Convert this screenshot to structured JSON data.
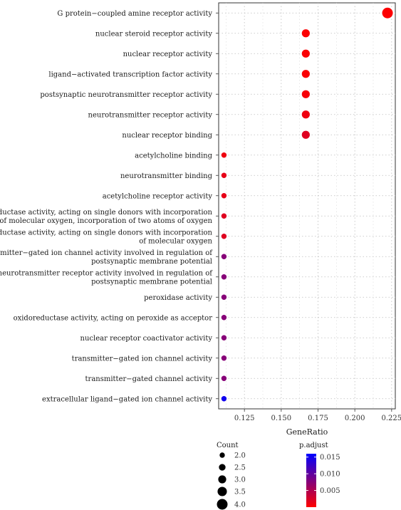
{
  "chart_data": {
    "type": "scatter",
    "xlabel": "GeneRatio",
    "xlim": [
      0.1075,
      0.2275
    ],
    "xticks": [
      0.125,
      0.15,
      0.175,
      0.2,
      0.225
    ],
    "xtick_labels": [
      "0.125",
      "0.150",
      "0.175",
      "0.200",
      "0.225"
    ],
    "grid": true,
    "points": [
      {
        "term": [
          "G protein−coupled amine receptor activity"
        ],
        "gene_ratio": 0.2222,
        "count": 4,
        "p_adjust": 0.0001
      },
      {
        "term": [
          "nuclear steroid receptor activity"
        ],
        "gene_ratio": 0.1667,
        "count": 3,
        "p_adjust": 0.0002
      },
      {
        "term": [
          "nuclear receptor activity"
        ],
        "gene_ratio": 0.1667,
        "count": 3,
        "p_adjust": 0.0003
      },
      {
        "term": [
          "ligand−activated transcription factor activity"
        ],
        "gene_ratio": 0.1667,
        "count": 3,
        "p_adjust": 0.0003
      },
      {
        "term": [
          "postsynaptic neurotransmitter receptor activity"
        ],
        "gene_ratio": 0.1667,
        "count": 3,
        "p_adjust": 0.0005
      },
      {
        "term": [
          "neurotransmitter receptor activity"
        ],
        "gene_ratio": 0.1667,
        "count": 3,
        "p_adjust": 0.001
      },
      {
        "term": [
          "nuclear receptor binding"
        ],
        "gene_ratio": 0.1667,
        "count": 3,
        "p_adjust": 0.002
      },
      {
        "term": [
          "acetylcholine binding"
        ],
        "gene_ratio": 0.1111,
        "count": 2,
        "p_adjust": 0.001
      },
      {
        "term": [
          "neurotransmitter binding"
        ],
        "gene_ratio": 0.1111,
        "count": 2,
        "p_adjust": 0.0015
      },
      {
        "term": [
          "acetylcholine receptor activity"
        ],
        "gene_ratio": 0.1111,
        "count": 2,
        "p_adjust": 0.0015
      },
      {
        "term": [
          "oxidoreductase activity, acting on single donors with incorporation",
          "of molecular oxygen, incorporation of two atoms of oxygen"
        ],
        "gene_ratio": 0.1111,
        "count": 2,
        "p_adjust": 0.002
      },
      {
        "term": [
          "oxidoreductase activity, acting on single donors with incorporation",
          "of molecular oxygen"
        ],
        "gene_ratio": 0.1111,
        "count": 2,
        "p_adjust": 0.002
      },
      {
        "term": [
          "transmitter−gated ion channel activity involved in regulation of",
          "postsynaptic membrane potential"
        ],
        "gene_ratio": 0.1111,
        "count": 2,
        "p_adjust": 0.0075
      },
      {
        "term": [
          "neurotransmitter receptor activity involved in regulation of",
          "postsynaptic membrane potential"
        ],
        "gene_ratio": 0.1111,
        "count": 2,
        "p_adjust": 0.0075
      },
      {
        "term": [
          "peroxidase activity"
        ],
        "gene_ratio": 0.1111,
        "count": 2,
        "p_adjust": 0.0075
      },
      {
        "term": [
          "oxidoreductase activity, acting on peroxide as acceptor"
        ],
        "gene_ratio": 0.1111,
        "count": 2,
        "p_adjust": 0.0075
      },
      {
        "term": [
          "nuclear receptor coactivator activity"
        ],
        "gene_ratio": 0.1111,
        "count": 2,
        "p_adjust": 0.0075
      },
      {
        "term": [
          "transmitter−gated ion channel activity"
        ],
        "gene_ratio": 0.1111,
        "count": 2,
        "p_adjust": 0.0075
      },
      {
        "term": [
          "transmitter−gated channel activity"
        ],
        "gene_ratio": 0.1111,
        "count": 2,
        "p_adjust": 0.0075
      },
      {
        "term": [
          "extracellular ligand−gated ion channel activity"
        ],
        "gene_ratio": 0.1111,
        "count": 2,
        "p_adjust": 0.015
      }
    ],
    "legend_size": {
      "title": "Count",
      "values": [
        2.0,
        2.5,
        3.0,
        3.5,
        4.0
      ],
      "labels": [
        "2.0",
        "2.5",
        "3.0",
        "3.5",
        "4.0"
      ]
    },
    "legend_color": {
      "title": "p.adjust",
      "range": [
        0,
        0.016
      ],
      "ticks": [
        0.005,
        0.01,
        0.015
      ],
      "tick_labels": [
        "0.005",
        "0.010",
        "0.015"
      ],
      "low_color": "#ff0000",
      "high_color": "#0000ff"
    }
  }
}
